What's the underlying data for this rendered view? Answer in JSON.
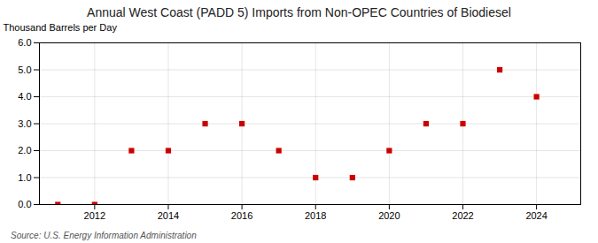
{
  "chart_data": {
    "type": "scatter",
    "title": "Annual West Coast (PADD 5) Imports from Non-OPEC Countries of Biodiesel",
    "ylabel": "Thousand Barrels per Day",
    "source": "Source: U.S. Energy Information Administration",
    "x": [
      2011,
      2012,
      2013,
      2014,
      2015,
      2016,
      2017,
      2018,
      2019,
      2020,
      2021,
      2022,
      2023,
      2024
    ],
    "values": [
      0,
      0,
      2,
      2,
      3,
      3,
      2,
      1,
      1,
      2,
      3,
      3,
      5,
      4
    ],
    "color": "#cc0000",
    "marker": "square",
    "xlim": [
      2010.5,
      2025.2
    ],
    "ylim": [
      0,
      6
    ],
    "xticks": [
      2012,
      2014,
      2016,
      2018,
      2020,
      2022,
      2024
    ],
    "yticks": [
      0,
      1,
      2,
      3,
      4,
      5,
      6
    ],
    "grid": true
  }
}
